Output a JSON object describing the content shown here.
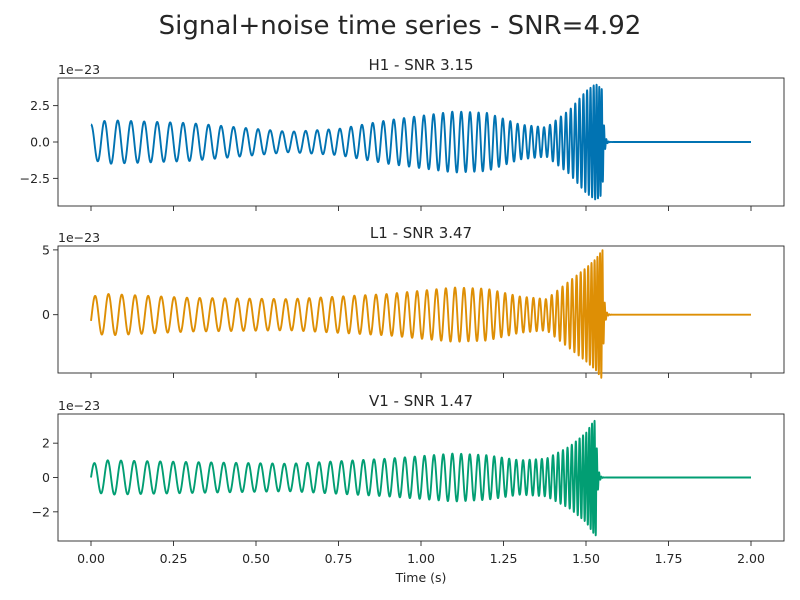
{
  "title": "Signal+noise time series - SNR=4.92",
  "chart_data": {
    "type": "line",
    "xlabel": "Time (s)",
    "xlim": [
      -0.1,
      2.1
    ],
    "xticks": [
      0.0,
      0.25,
      0.5,
      0.75,
      1.0,
      1.25,
      1.5,
      1.75,
      2.0
    ],
    "xtick_labels": [
      "0.00",
      "0.25",
      "0.50",
      "0.75",
      "1.00",
      "1.25",
      "1.50",
      "1.75",
      "2.00"
    ],
    "panels": [
      {
        "title": "H1 - SNR 3.15",
        "offset_label": "1e−23",
        "color": "#0173b2",
        "ylim": [
          -4.4,
          4.4
        ],
        "yticks": [
          2.5,
          0.0,
          -2.5
        ],
        "ytick_labels": [
          "2.5",
          "0.0",
          "−2.5"
        ],
        "series": {
          "t_end": 1.55,
          "envelope_t": [
            0.0,
            0.05,
            0.3,
            0.6,
            0.75,
            0.9,
            1.1,
            1.2,
            1.3,
            1.38,
            1.45,
            1.5,
            1.53,
            1.55
          ],
          "envelope_amp": [
            1.2,
            1.5,
            1.3,
            0.7,
            0.9,
            1.5,
            2.1,
            2.0,
            1.2,
            1.0,
            2.2,
            3.5,
            4.0,
            3.6
          ],
          "phase_deg": 90
        }
      },
      {
        "title": "L1 - SNR 3.47",
        "offset_label": "1e−23",
        "color": "#de8f05",
        "ylim": [
          -4.5,
          5.3
        ],
        "yticks": [
          5,
          0
        ],
        "ytick_labels": [
          "5",
          "0"
        ],
        "series": {
          "t_end": 1.55,
          "envelope_t": [
            0.0,
            0.05,
            0.3,
            0.6,
            0.9,
            1.1,
            1.2,
            1.3,
            1.38,
            1.45,
            1.5,
            1.53,
            1.55
          ],
          "envelope_amp": [
            1.4,
            1.6,
            1.3,
            1.2,
            1.6,
            2.1,
            2.0,
            1.4,
            1.2,
            2.6,
            3.6,
            4.3,
            5.0
          ],
          "phase_deg": -20
        }
      },
      {
        "title": "V1 - SNR 1.47",
        "offset_label": "1e−23",
        "color": "#029e73",
        "ylim": [
          -3.7,
          3.7
        ],
        "yticks": [
          2,
          0,
          -2
        ],
        "ytick_labels": [
          "2",
          "0",
          "−2"
        ],
        "series": {
          "t_end": 1.53,
          "envelope_t": [
            0.0,
            0.05,
            0.3,
            0.6,
            0.9,
            1.1,
            1.2,
            1.3,
            1.38,
            1.45,
            1.5,
            1.52,
            1.53
          ],
          "envelope_amp": [
            0.8,
            1.0,
            0.9,
            0.8,
            1.1,
            1.4,
            1.3,
            1.0,
            1.1,
            1.8,
            2.6,
            3.2,
            3.4
          ],
          "phase_deg": 0
        }
      }
    ]
  }
}
